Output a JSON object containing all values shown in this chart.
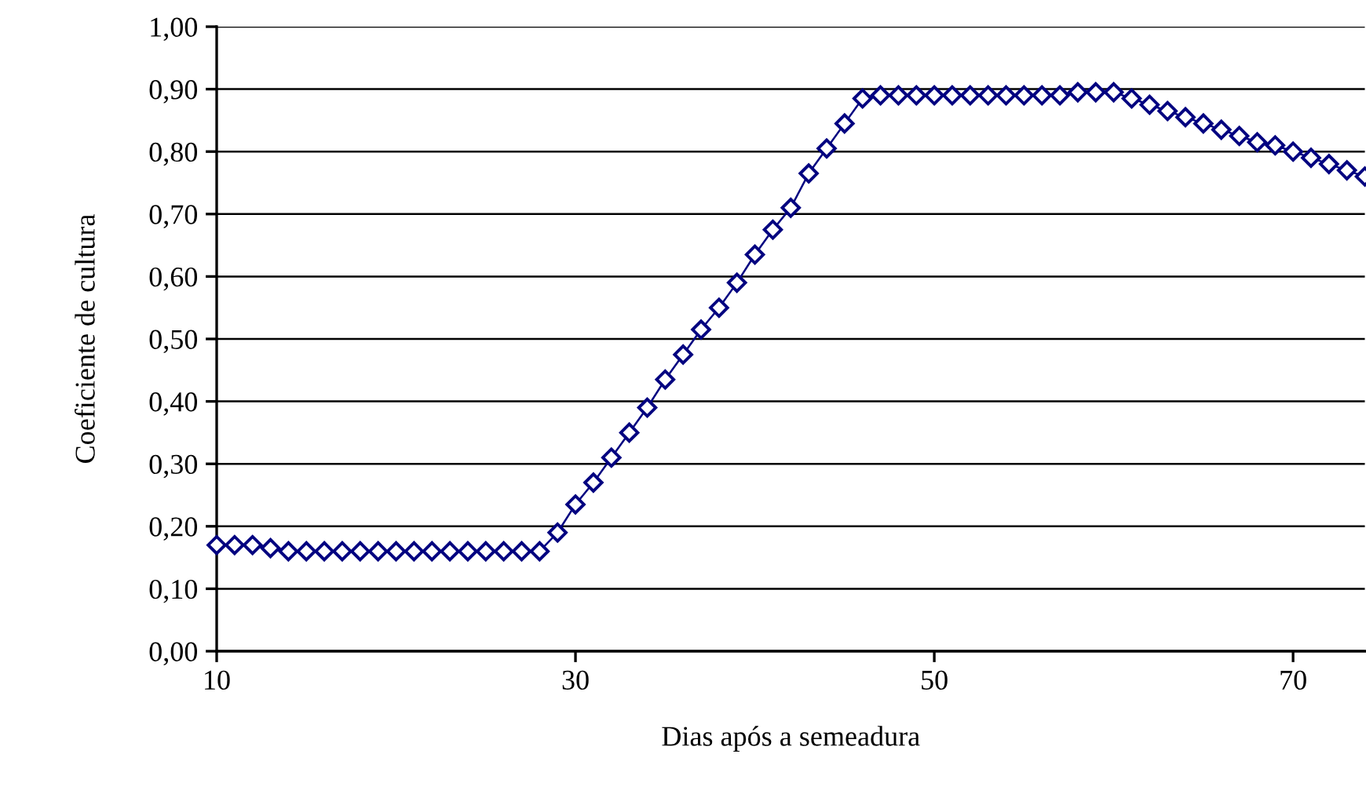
{
  "chart_data": {
    "type": "line",
    "xlabel": "Dias após a semeadura",
    "ylabel": "Coeficiente de cultura",
    "x": [
      10,
      11,
      12,
      13,
      14,
      15,
      16,
      17,
      18,
      19,
      20,
      21,
      22,
      23,
      24,
      25,
      26,
      27,
      28,
      29,
      30,
      31,
      32,
      33,
      34,
      35,
      36,
      37,
      38,
      39,
      40,
      41,
      42,
      43,
      44,
      45,
      46,
      47,
      48,
      49,
      50,
      51,
      52,
      53,
      54,
      55,
      56,
      57,
      58,
      59,
      60,
      61,
      62,
      63,
      64,
      65,
      66,
      67,
      68,
      69,
      70,
      71,
      72,
      73,
      74
    ],
    "series": [
      {
        "color": "#000080",
        "values": [
          0.17,
          0.17,
          0.17,
          0.165,
          0.16,
          0.16,
          0.16,
          0.16,
          0.16,
          0.16,
          0.16,
          0.16,
          0.16,
          0.16,
          0.16,
          0.16,
          0.16,
          0.16,
          0.16,
          0.19,
          0.235,
          0.27,
          0.31,
          0.35,
          0.39,
          0.435,
          0.475,
          0.515,
          0.55,
          0.59,
          0.635,
          0.675,
          0.71,
          0.765,
          0.805,
          0.845,
          0.885,
          0.89,
          0.89,
          0.89,
          0.89,
          0.89,
          0.89,
          0.89,
          0.89,
          0.89,
          0.89,
          0.89,
          0.895,
          0.895,
          0.895,
          0.885,
          0.875,
          0.865,
          0.855,
          0.845,
          0.835,
          0.825,
          0.815,
          0.81,
          0.8,
          0.79,
          0.78,
          0.77,
          0.76
        ]
      }
    ],
    "xlim": [
      10,
      74
    ],
    "xticks": [
      10,
      30,
      50,
      70
    ],
    "ylim": [
      0,
      1
    ],
    "yticks": [
      {
        "value": 0,
        "label": "0,00"
      },
      {
        "value": 0.1,
        "label": "0,10"
      },
      {
        "value": 0.2,
        "label": "0,20"
      },
      {
        "value": 0.3,
        "label": "0,30"
      },
      {
        "value": 0.4,
        "label": "0,40"
      },
      {
        "value": 0.5,
        "label": "0,50"
      },
      {
        "value": 0.6,
        "label": "0,60"
      },
      {
        "value": 0.7,
        "label": "0,70"
      },
      {
        "value": 0.8,
        "label": "0,80"
      },
      {
        "value": 0.9,
        "label": "0,90"
      },
      {
        "value": 1,
        "label": "1,00"
      }
    ],
    "grid": "y",
    "marker": "diamond",
    "line_style": "solid"
  }
}
